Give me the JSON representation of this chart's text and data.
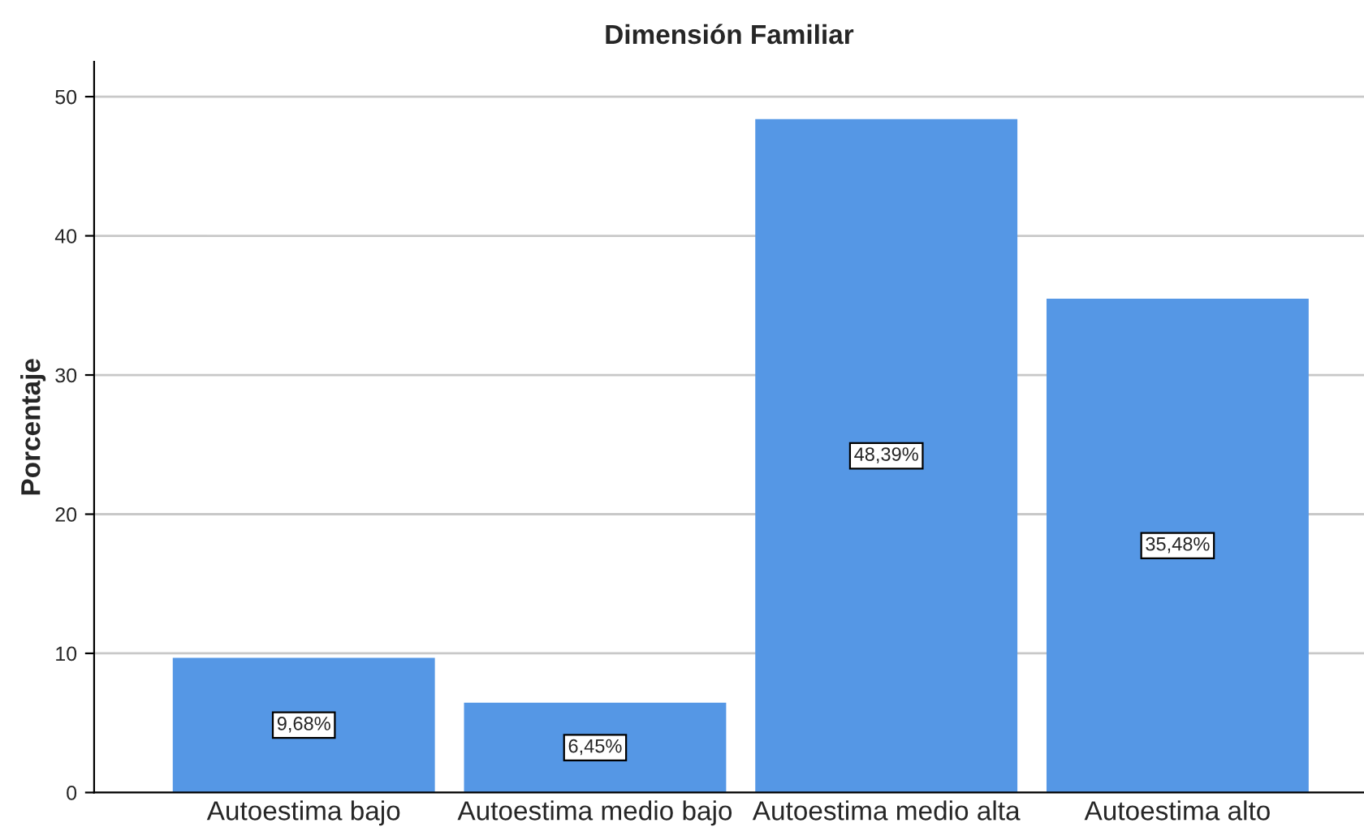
{
  "chart_data": {
    "type": "bar",
    "title": "Dimensión Familiar",
    "ylabel": "Porcentaje",
    "categories": [
      "Autoestima bajo",
      "Autoestima medio bajo",
      "Autoestima medio alta",
      "Autoestima alto"
    ],
    "values": [
      9.68,
      6.45,
      48.39,
      35.48
    ],
    "value_labels": [
      "9,68%",
      "6,45%",
      "48,39%",
      "35,48%"
    ],
    "color": "#5597e5",
    "ylim": [
      0,
      52.5
    ],
    "yticks": [
      0,
      10,
      20,
      30,
      40,
      50
    ],
    "grid": "y",
    "legend": false
  }
}
